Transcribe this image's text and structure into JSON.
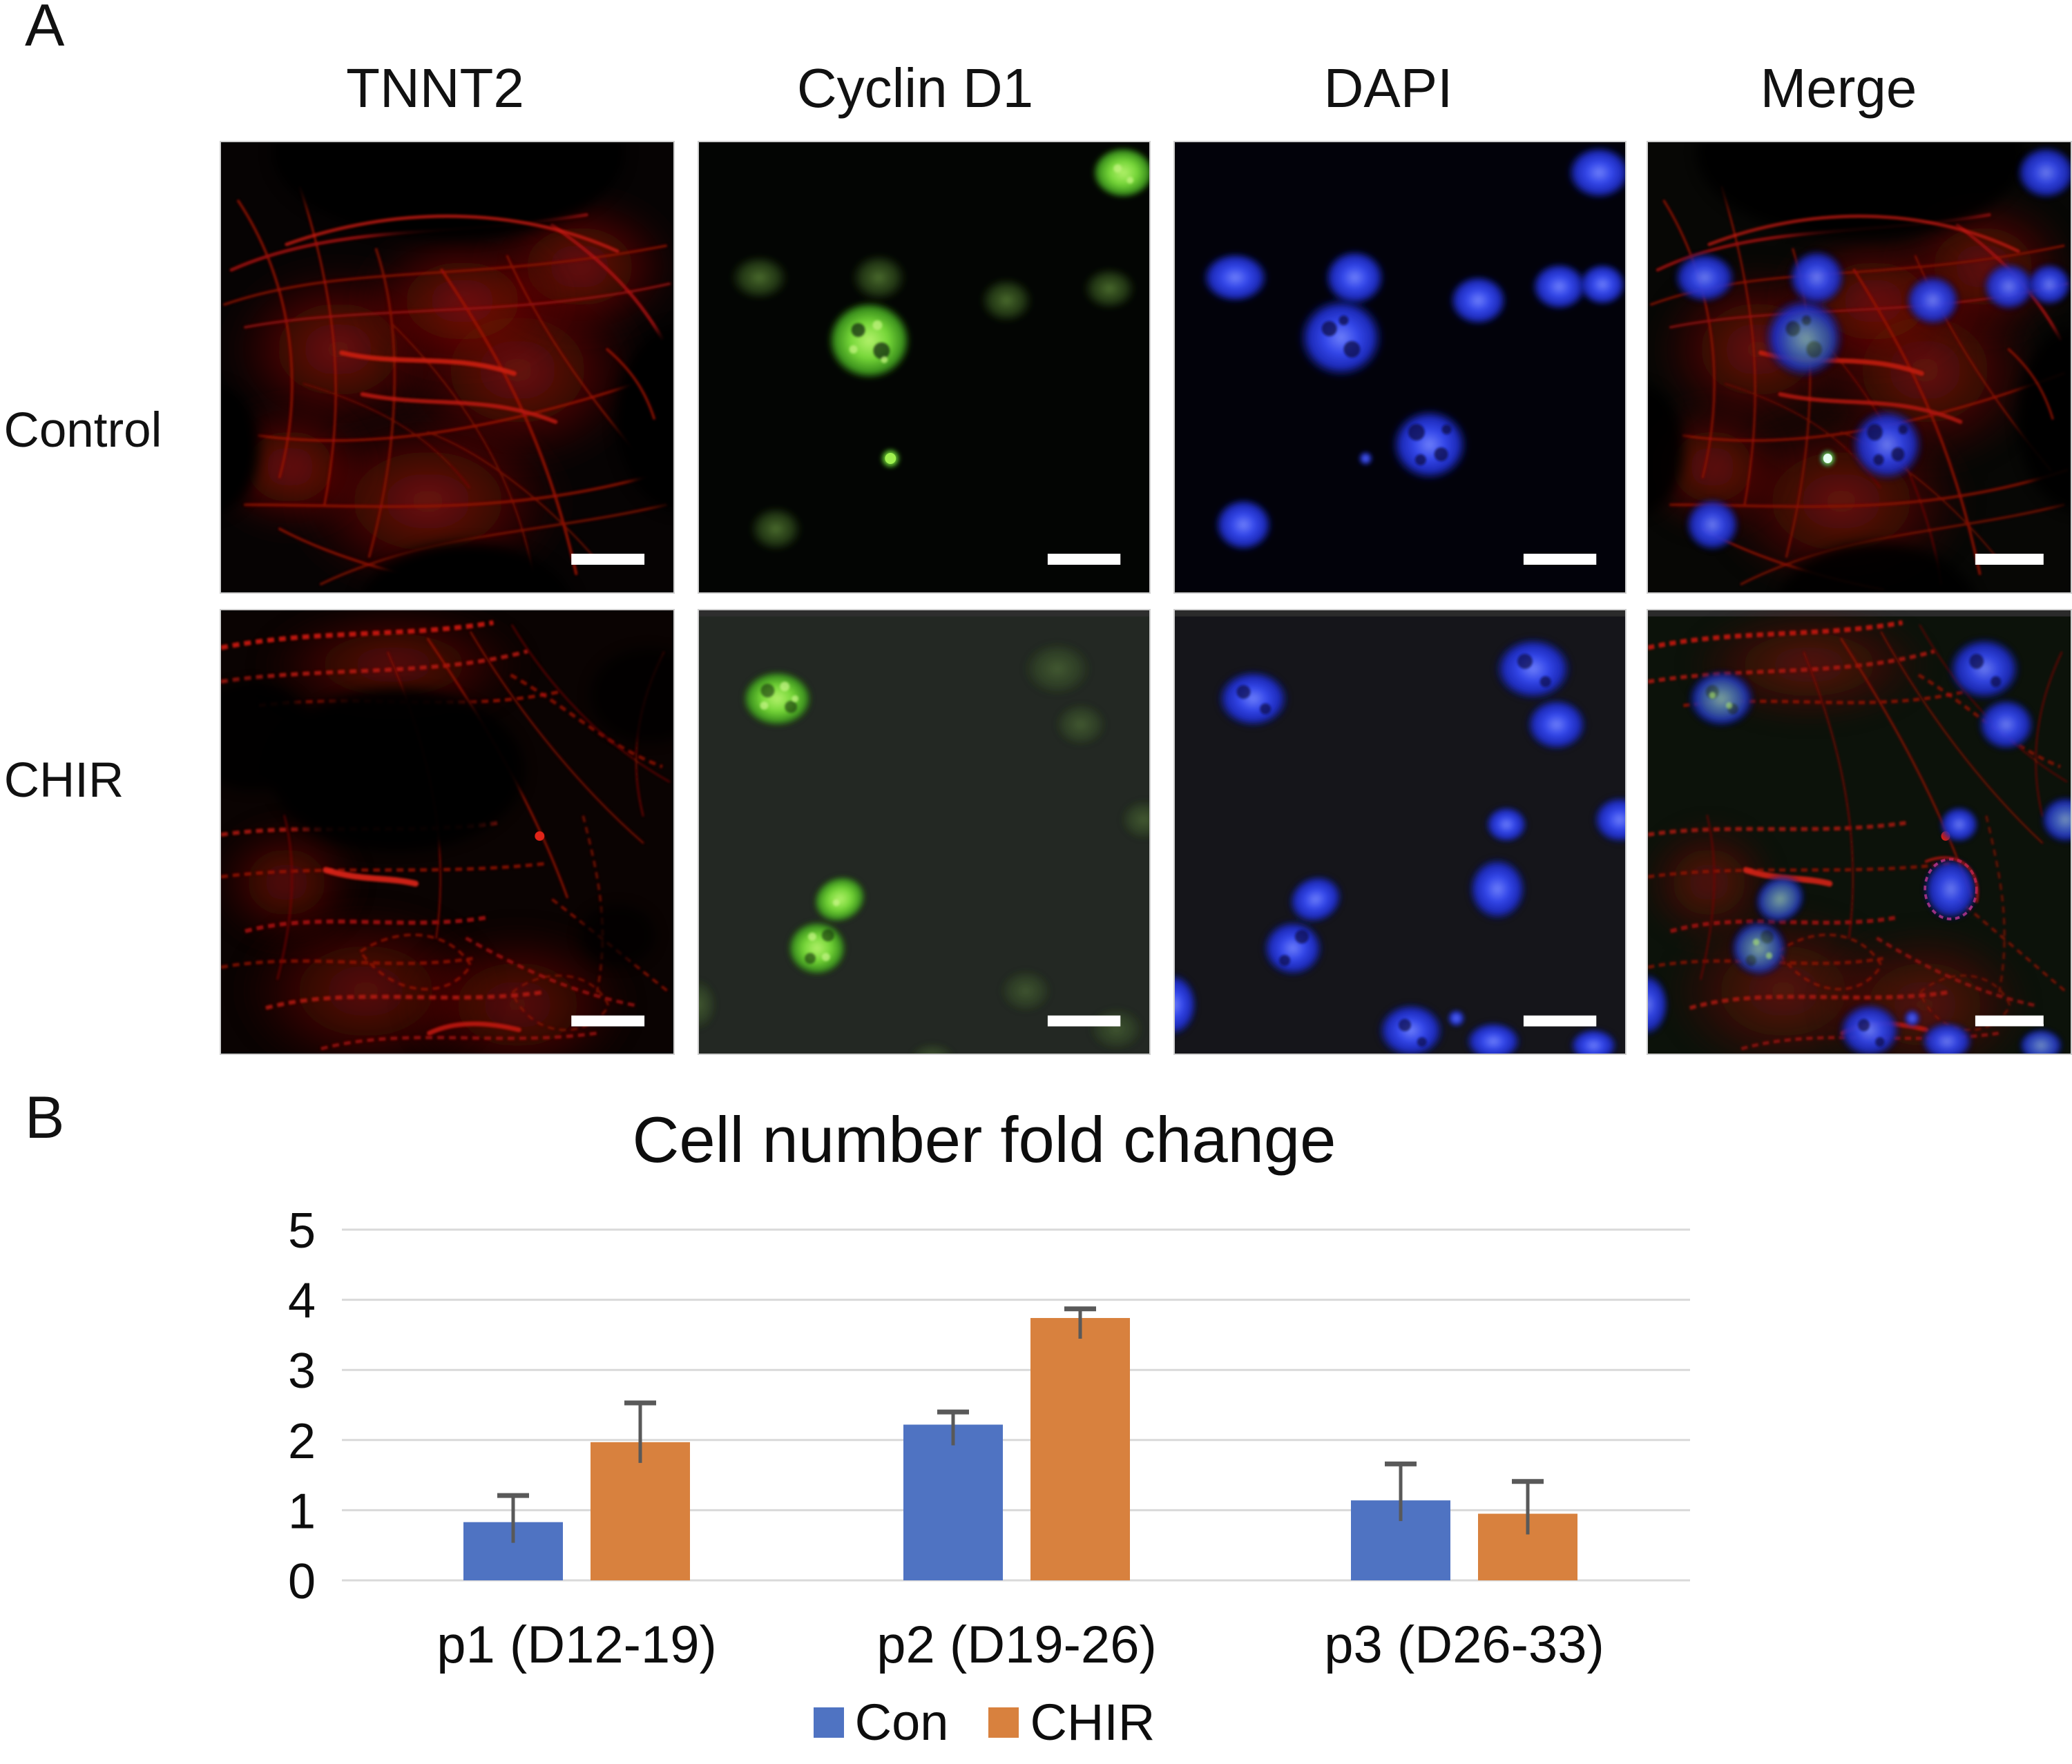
{
  "panel_a": {
    "label": "A",
    "column_headers": [
      "TNNT2",
      "Cyclin D1",
      "DAPI",
      "Merge"
    ],
    "row_labels": [
      "Control",
      "CHIR"
    ]
  },
  "panel_b": {
    "label": "B"
  },
  "chart_data": {
    "type": "bar",
    "title": "Cell number fold change",
    "xlabel": "",
    "ylabel": "",
    "categories": [
      "p1 (D12-19)",
      "p2 (D19-26)",
      "p3 (D26-33)"
    ],
    "series": [
      {
        "name": "Con",
        "color": "#4F73C2",
        "values": [
          0.83,
          2.22,
          1.14
        ],
        "errors_plus": [
          0.38,
          0.18,
          0.52
        ]
      },
      {
        "name": "CHIR",
        "color": "#D8813E",
        "values": [
          1.97,
          3.74,
          0.95
        ],
        "errors_plus": [
          0.56,
          0.13,
          0.46
        ]
      }
    ],
    "ylim": [
      0,
      5
    ],
    "yticks": [
      0,
      1,
      2,
      3,
      4,
      5
    ],
    "grid": true,
    "legend_position": "bottom",
    "gridline_color": "#D9D9D9",
    "error_bar_color": "#595959"
  }
}
